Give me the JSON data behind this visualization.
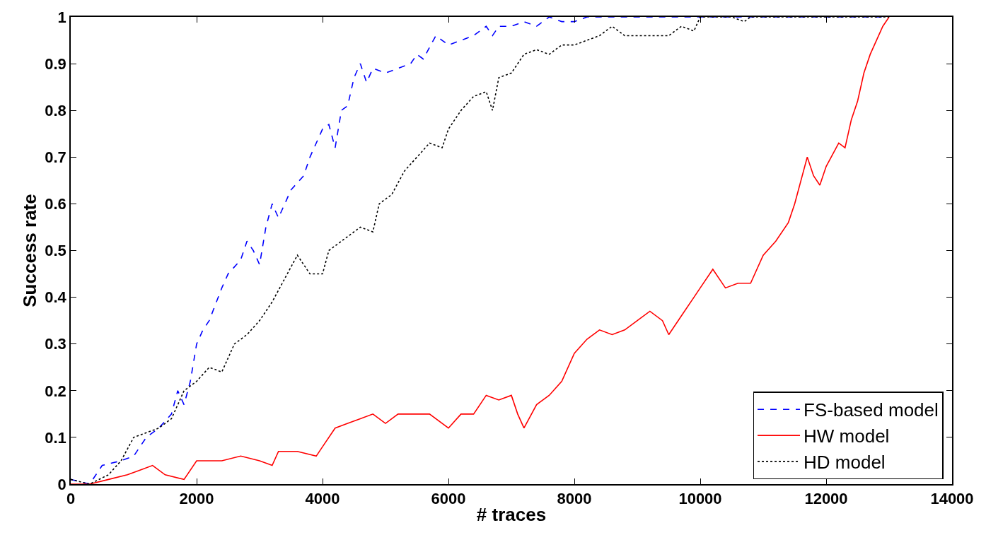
{
  "chart_data": {
    "type": "line",
    "xlabel": "# traces",
    "ylabel": "Success rate",
    "xlim": [
      0,
      14000
    ],
    "xticks": [
      0,
      2000,
      4000,
      6000,
      8000,
      10000,
      12000,
      14000
    ],
    "ylim": [
      0,
      1
    ],
    "yticks": [
      0,
      0.1,
      0.2,
      0.3,
      0.4,
      0.5,
      0.6,
      0.7,
      0.8,
      0.9,
      1
    ],
    "legend": "bottom right",
    "marker": "none",
    "series": [
      {
        "name": "FS-based model",
        "color": "#0000ff",
        "line_style": "dashed",
        "x": [
          0,
          300,
          500,
          800,
          1000,
          1200,
          1400,
          1600,
          1700,
          1800,
          1900,
          2000,
          2100,
          2200,
          2400,
          2500,
          2700,
          2800,
          2900,
          3000,
          3100,
          3200,
          3300,
          3500,
          3700,
          3800,
          4000,
          4100,
          4200,
          4300,
          4400,
          4500,
          4600,
          4700,
          4800,
          5000,
          5200,
          5400,
          5500,
          5600,
          5800,
          5900,
          6000,
          6200,
          6400,
          6600,
          6700,
          6800,
          7000,
          7200,
          7400,
          7600,
          7800,
          8000,
          8200,
          13000
        ],
        "values": [
          0.01,
          0.0,
          0.04,
          0.05,
          0.06,
          0.1,
          0.12,
          0.15,
          0.2,
          0.17,
          0.22,
          0.3,
          0.33,
          0.35,
          0.42,
          0.45,
          0.48,
          0.52,
          0.5,
          0.47,
          0.55,
          0.6,
          0.57,
          0.63,
          0.66,
          0.7,
          0.76,
          0.77,
          0.72,
          0.8,
          0.81,
          0.87,
          0.9,
          0.86,
          0.89,
          0.88,
          0.89,
          0.9,
          0.92,
          0.91,
          0.96,
          0.95,
          0.94,
          0.95,
          0.96,
          0.98,
          0.96,
          0.98,
          0.98,
          0.99,
          0.98,
          1.0,
          0.99,
          0.99,
          1.0,
          1.0
        ]
      },
      {
        "name": "HW model",
        "color": "#ff0000",
        "line_style": "solid",
        "x": [
          0,
          300,
          600,
          900,
          1100,
          1300,
          1500,
          1800,
          2000,
          2400,
          2700,
          3000,
          3200,
          3300,
          3600,
          3900,
          4000,
          4200,
          4400,
          4600,
          4800,
          5000,
          5200,
          5400,
          5700,
          6000,
          6200,
          6400,
          6600,
          6800,
          7000,
          7100,
          7200,
          7400,
          7600,
          7800,
          8000,
          8200,
          8400,
          8600,
          8800,
          9000,
          9200,
          9400,
          9500,
          9700,
          9900,
          10000,
          10200,
          10400,
          10600,
          10800,
          11000,
          11200,
          11400,
          11500,
          11700,
          11800,
          11900,
          12000,
          12200,
          12300,
          12400,
          12500,
          12600,
          12700,
          12900,
          13000
        ],
        "values": [
          0,
          0,
          0.01,
          0.02,
          0.03,
          0.04,
          0.02,
          0.01,
          0.05,
          0.05,
          0.06,
          0.05,
          0.04,
          0.07,
          0.07,
          0.06,
          0.08,
          0.12,
          0.13,
          0.14,
          0.15,
          0.13,
          0.15,
          0.15,
          0.15,
          0.12,
          0.15,
          0.15,
          0.19,
          0.18,
          0.19,
          0.15,
          0.12,
          0.17,
          0.19,
          0.22,
          0.28,
          0.31,
          0.33,
          0.32,
          0.33,
          0.35,
          0.37,
          0.35,
          0.32,
          0.36,
          0.4,
          0.42,
          0.46,
          0.42,
          0.43,
          0.43,
          0.49,
          0.52,
          0.56,
          0.6,
          0.7,
          0.66,
          0.64,
          0.68,
          0.73,
          0.72,
          0.78,
          0.82,
          0.88,
          0.92,
          0.98,
          1.0
        ]
      },
      {
        "name": "HD model",
        "color": "#000000",
        "line_style": "dotted",
        "x": [
          0,
          300,
          600,
          800,
          1000,
          1200,
          1400,
          1600,
          1800,
          2000,
          2200,
          2400,
          2600,
          2800,
          3000,
          3200,
          3400,
          3600,
          3800,
          4000,
          4100,
          4300,
          4600,
          4800,
          4900,
          5100,
          5300,
          5500,
          5700,
          5900,
          6000,
          6200,
          6400,
          6600,
          6700,
          6800,
          7000,
          7200,
          7400,
          7600,
          7800,
          8000,
          8200,
          8400,
          8600,
          8800,
          9000,
          9500,
          9700,
          9900,
          10000,
          10500,
          10700,
          10800,
          13000
        ],
        "values": [
          0.01,
          0.0,
          0.02,
          0.05,
          0.1,
          0.11,
          0.12,
          0.14,
          0.2,
          0.22,
          0.25,
          0.24,
          0.3,
          0.32,
          0.35,
          0.39,
          0.44,
          0.49,
          0.45,
          0.45,
          0.5,
          0.52,
          0.55,
          0.54,
          0.6,
          0.62,
          0.67,
          0.7,
          0.73,
          0.72,
          0.76,
          0.8,
          0.83,
          0.84,
          0.8,
          0.87,
          0.88,
          0.92,
          0.93,
          0.92,
          0.94,
          0.94,
          0.95,
          0.96,
          0.98,
          0.96,
          0.96,
          0.96,
          0.98,
          0.97,
          1.0,
          1.0,
          0.99,
          1.0,
          1.0
        ]
      }
    ]
  }
}
